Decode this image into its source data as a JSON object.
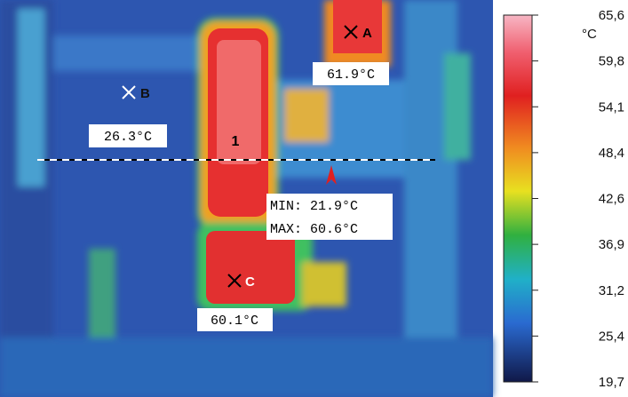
{
  "markers": [
    {
      "label": "A",
      "reading": "61.9°C"
    },
    {
      "label": "B",
      "reading": "26.3°C"
    },
    {
      "label": "C",
      "reading": "60.1°C"
    }
  ],
  "region_label": "1",
  "line_stats": {
    "min": "MIN: 21.9°C",
    "max": "MAX: 60.6°C"
  },
  "colorbar": {
    "unit": "°C",
    "ticks": [
      "65,6",
      "59,8",
      "54,1",
      "48,4",
      "42,6",
      "36,9",
      "31,2",
      "25,4",
      "19,7"
    ]
  }
}
